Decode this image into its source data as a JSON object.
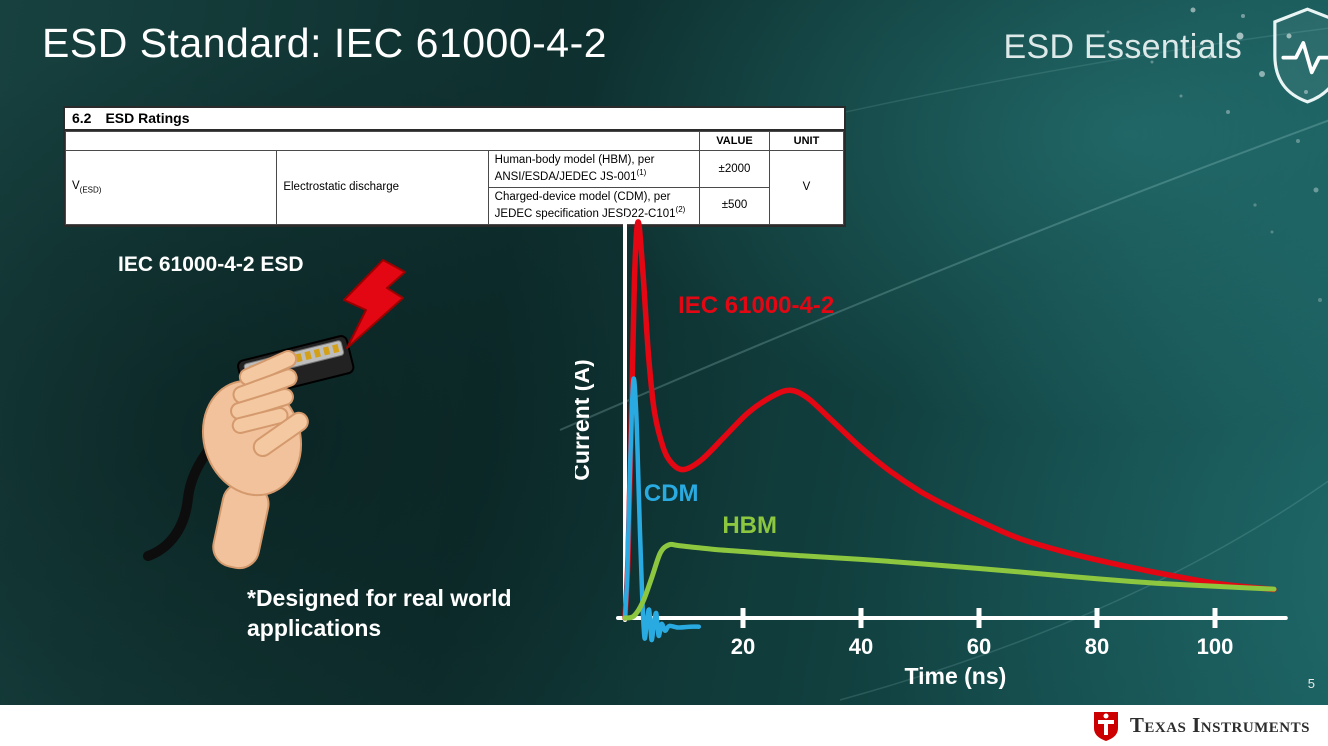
{
  "slide": {
    "title": "ESD Standard: IEC 61000-4-2",
    "series_brand": "ESD Essentials",
    "page_number": "5"
  },
  "datasheet_table": {
    "section_number": "6.2",
    "section_title": "ESD Ratings",
    "headers": {
      "value": "VALUE",
      "unit": "UNIT"
    },
    "symbol": "V",
    "symbol_sub": "(ESD)",
    "parameter": "Electrostatic discharge",
    "rows": [
      {
        "description": "Human-body model (HBM), per ANSI/ESDA/JEDEC JS-001",
        "superscript": "(1)",
        "value": "±2000"
      },
      {
        "description": "Charged-device model (CDM), per JEDEC specification JESD22-C101",
        "superscript": "(2)",
        "value": "±500"
      }
    ],
    "unit": "V"
  },
  "illustration": {
    "label": "IEC 61000-4-2 ESD",
    "note": "*Designed for real world\napplications"
  },
  "footer": {
    "logo_text": "Texas Instruments",
    "bug_color": "#cc0000"
  },
  "chart_data": {
    "type": "line",
    "xlabel": "Time (ns)",
    "ylabel": "Current (A)",
    "x_ticks": [
      20,
      40,
      60,
      80,
      100
    ],
    "xlim": [
      0,
      112
    ],
    "ylim": [
      -0.08,
      1.05
    ],
    "grid": false,
    "legend": "inline-labels",
    "series": [
      {
        "name": "IEC 61000-4-2",
        "color": "#e30613",
        "width": 5.5,
        "label": {
          "x": 9,
          "y": 0.77
        },
        "points": [
          [
            0,
            0
          ],
          [
            0.5,
            0.15
          ],
          [
            1,
            0.45
          ],
          [
            1.6,
            0.85
          ],
          [
            2.2,
            1.0
          ],
          [
            3,
            0.88
          ],
          [
            4,
            0.66
          ],
          [
            5,
            0.52
          ],
          [
            6.5,
            0.43
          ],
          [
            8,
            0.39
          ],
          [
            10,
            0.375
          ],
          [
            13,
            0.4
          ],
          [
            17,
            0.46
          ],
          [
            21,
            0.52
          ],
          [
            25,
            0.56
          ],
          [
            28,
            0.575
          ],
          [
            31,
            0.555
          ],
          [
            35,
            0.5
          ],
          [
            40,
            0.43
          ],
          [
            45,
            0.37
          ],
          [
            50,
            0.32
          ],
          [
            55,
            0.28
          ],
          [
            60,
            0.245
          ],
          [
            67,
            0.2
          ],
          [
            75,
            0.165
          ],
          [
            82,
            0.14
          ],
          [
            90,
            0.115
          ],
          [
            100,
            0.088
          ],
          [
            110,
            0.072
          ]
        ]
      },
      {
        "name": "CDM",
        "color": "#29abe2",
        "width": 4.5,
        "label": {
          "x": 3.2,
          "y": 0.295
        },
        "points": [
          [
            0,
            0
          ],
          [
            0.4,
            0.12
          ],
          [
            0.9,
            0.4
          ],
          [
            1.4,
            0.6
          ],
          [
            1.9,
            0.52
          ],
          [
            2.4,
            0.28
          ],
          [
            2.9,
            0.06
          ],
          [
            3.3,
            -0.05
          ],
          [
            3.7,
            -0.01
          ],
          [
            4.1,
            0.02
          ],
          [
            4.5,
            -0.055
          ],
          [
            4.9,
            -0.015
          ],
          [
            5.3,
            0.012
          ],
          [
            5.7,
            -0.045
          ],
          [
            6.2,
            -0.015
          ],
          [
            6.8,
            -0.032
          ],
          [
            7.5,
            -0.02
          ],
          [
            9,
            -0.024
          ],
          [
            11,
            -0.022
          ],
          [
            12.5,
            -0.022
          ]
        ]
      },
      {
        "name": "HBM",
        "color": "#8dc63f",
        "width": 5,
        "label": {
          "x": 16.5,
          "y": 0.215
        },
        "points": [
          [
            0,
            0
          ],
          [
            1.5,
            0.005
          ],
          [
            3,
            0.04
          ],
          [
            4.5,
            0.1
          ],
          [
            6,
            0.165
          ],
          [
            7.5,
            0.185
          ],
          [
            9,
            0.183
          ],
          [
            12,
            0.178
          ],
          [
            16,
            0.172
          ],
          [
            20,
            0.168
          ],
          [
            25,
            0.162
          ],
          [
            30,
            0.157
          ],
          [
            40,
            0.148
          ],
          [
            50,
            0.137
          ],
          [
            60,
            0.125
          ],
          [
            70,
            0.112
          ],
          [
            80,
            0.099
          ],
          [
            90,
            0.088
          ],
          [
            100,
            0.08
          ],
          [
            110,
            0.073
          ]
        ]
      }
    ]
  }
}
